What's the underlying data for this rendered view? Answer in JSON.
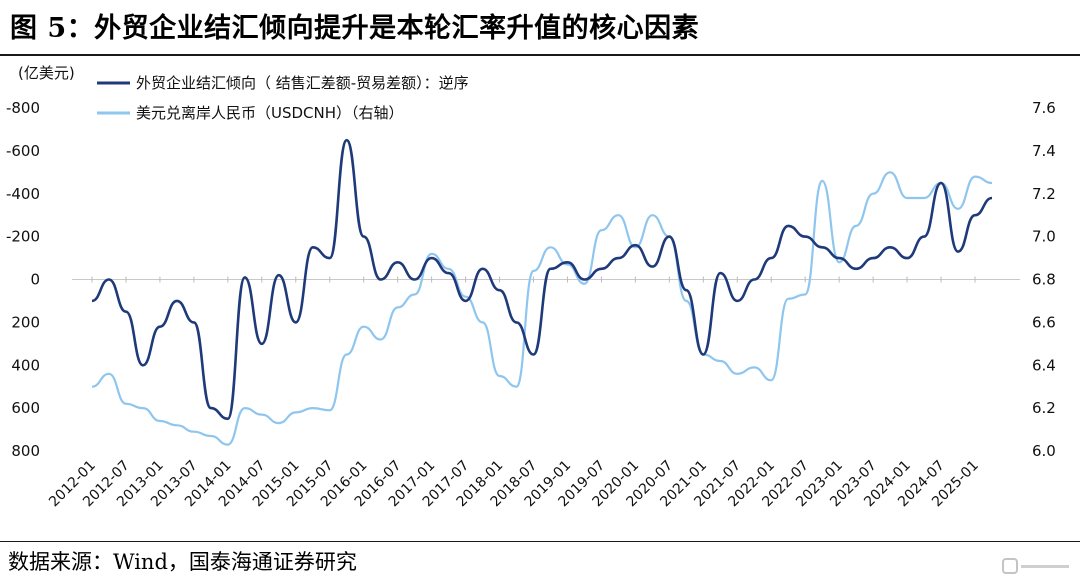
{
  "title": "图 5：外贸企业结汇倾向提升是本轮汇率升值的核心因素",
  "source": "数据来源：Wind，国泰海通证券研究",
  "watermark_icon": "gelonghui-logo-icon",
  "chart_data": {
    "type": "line",
    "y_unit_label": "(亿美元)",
    "x": [
      "2012-01",
      "2012-04",
      "2012-07",
      "2012-10",
      "2013-01",
      "2013-04",
      "2013-07",
      "2013-10",
      "2014-01",
      "2014-04",
      "2014-07",
      "2014-10",
      "2015-01",
      "2015-04",
      "2015-07",
      "2015-10",
      "2016-01",
      "2016-04",
      "2016-07",
      "2016-10",
      "2017-01",
      "2017-04",
      "2017-07",
      "2017-10",
      "2018-01",
      "2018-04",
      "2018-07",
      "2018-10",
      "2019-01",
      "2019-04",
      "2019-07",
      "2019-10",
      "2020-01",
      "2020-04",
      "2020-07",
      "2020-10",
      "2021-01",
      "2021-04",
      "2021-07",
      "2021-10",
      "2022-01",
      "2022-04",
      "2022-07",
      "2022-10",
      "2023-01",
      "2023-04",
      "2023-07",
      "2023-10",
      "2024-01",
      "2024-04",
      "2024-07",
      "2024-10",
      "2025-01",
      "2025-04"
    ],
    "x_tick_labels": [
      "2012-01",
      "2012-07",
      "2013-01",
      "2013-07",
      "2014-01",
      "2014-07",
      "2015-01",
      "2015-07",
      "2016-01",
      "2016-07",
      "2017-01",
      "2017-07",
      "2018-01",
      "2018-07",
      "2019-01",
      "2019-07",
      "2020-01",
      "2020-07",
      "2021-01",
      "2021-07",
      "2022-01",
      "2022-07",
      "2023-01",
      "2023-07",
      "2024-01",
      "2024-07",
      "2025-01"
    ],
    "y_left": {
      "min": -800,
      "max": 800,
      "reversed": true,
      "ticks": [
        -800,
        -600,
        -400,
        -200,
        0,
        200,
        400,
        600,
        800
      ]
    },
    "y_right": {
      "min": 6.0,
      "max": 7.6,
      "ticks": [
        6.0,
        6.2,
        6.4,
        6.6,
        6.8,
        7.0,
        7.2,
        7.4,
        7.6
      ]
    },
    "series": [
      {
        "name": "外贸企业结汇倾向（结售汇差额-贸易差额）：逆序",
        "axis": "left",
        "color": "#1f3a7a",
        "values": [
          100,
          0,
          150,
          400,
          220,
          100,
          200,
          600,
          650,
          -10,
          300,
          -20,
          200,
          -150,
          -100,
          -650,
          -200,
          0,
          -80,
          0,
          -100,
          -30,
          100,
          -50,
          50,
          200,
          350,
          -50,
          -80,
          0,
          -50,
          -100,
          -160,
          -60,
          -200,
          50,
          350,
          -30,
          100,
          0,
          -100,
          -250,
          -200,
          -150,
          -100,
          -50,
          -100,
          -150,
          -100,
          -200,
          -450,
          -130,
          -300,
          -380
        ]
      },
      {
        "name": "美元兑离岸人民币（USDCNH）（右轴）",
        "axis": "right",
        "color": "#8fc6ee",
        "values": [
          6.3,
          6.36,
          6.22,
          6.2,
          6.14,
          6.12,
          6.09,
          6.07,
          6.03,
          6.2,
          6.17,
          6.13,
          6.18,
          6.2,
          6.19,
          6.45,
          6.58,
          6.52,
          6.67,
          6.73,
          6.92,
          6.85,
          6.72,
          6.6,
          6.35,
          6.3,
          6.84,
          6.95,
          6.87,
          6.78,
          7.03,
          7.1,
          6.95,
          7.1,
          7.0,
          6.7,
          6.45,
          6.42,
          6.36,
          6.39,
          6.33,
          6.71,
          6.73,
          7.26,
          6.88,
          7.05,
          7.2,
          7.3,
          7.18,
          7.18,
          7.25,
          7.13,
          7.28,
          7.25
        ]
      }
    ]
  },
  "legend": {
    "series_1": "外贸企业结汇倾向（ 结售汇差额-贸易差额）：逆序",
    "series_2": "美元兑离岸人民币（USDCNH）（右轴）"
  }
}
